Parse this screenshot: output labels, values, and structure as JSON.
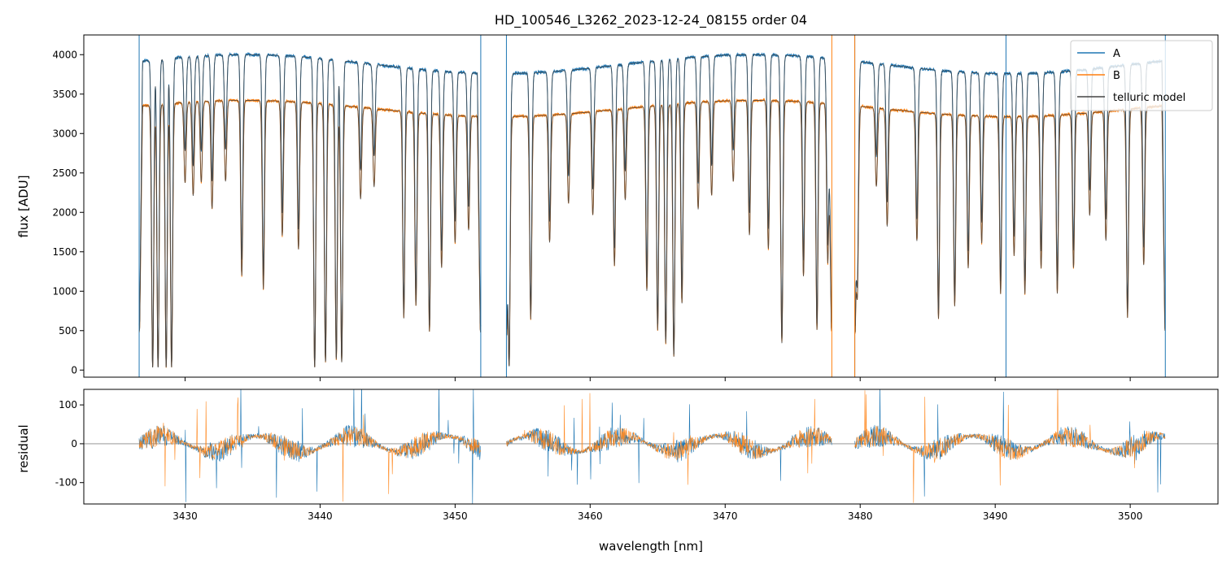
{
  "chart_data": [
    {
      "panel": "spectrum",
      "type": "line",
      "title": "HD_100546_L3262_2023-12-24_08155  order 04",
      "xlabel": "",
      "ylabel": "flux [ADU]",
      "xlim": [
        3422.5,
        3506.5
      ],
      "ylim": [
        -90,
        4250
      ],
      "yticks": [
        0,
        500,
        1000,
        1500,
        2000,
        2500,
        3000,
        3500,
        4000
      ],
      "xticks": [
        3430,
        3440,
        3450,
        3460,
        3470,
        3480,
        3490,
        3500
      ],
      "grid": false,
      "legend": "top-right",
      "series": [
        {
          "name": "A",
          "color": "#1f77b4",
          "continuum": 4000,
          "segments": [
            [
              3426.6,
              3451.9
            ],
            [
              3453.8,
              3477.9
            ],
            [
              3479.6,
              3502.6
            ]
          ]
        },
        {
          "name": "B",
          "color": "#ff7f0e",
          "continuum": 3420,
          "segments": [
            [
              3426.6,
              3451.9
            ],
            [
              3453.8,
              3477.9
            ],
            [
              3479.6,
              3502.6
            ]
          ]
        },
        {
          "name": "telluric model",
          "color": "#444444"
        }
      ],
      "absorption_lines": [
        {
          "x": 3427.6,
          "depth": 0.99
        },
        {
          "x": 3428.0,
          "depth": 0.99
        },
        {
          "x": 3428.6,
          "depth": 0.99
        },
        {
          "x": 3429.0,
          "depth": 0.99
        },
        {
          "x": 3430.0,
          "depth": 0.3
        },
        {
          "x": 3430.6,
          "depth": 0.35
        },
        {
          "x": 3431.2,
          "depth": 0.3
        },
        {
          "x": 3432.0,
          "depth": 0.4
        },
        {
          "x": 3433.0,
          "depth": 0.3
        },
        {
          "x": 3434.2,
          "depth": 0.65
        },
        {
          "x": 3435.8,
          "depth": 0.7
        },
        {
          "x": 3437.2,
          "depth": 0.5
        },
        {
          "x": 3438.4,
          "depth": 0.55
        },
        {
          "x": 3439.6,
          "depth": 0.99
        },
        {
          "x": 3440.4,
          "depth": 0.97
        },
        {
          "x": 3441.2,
          "depth": 0.96
        },
        {
          "x": 3441.6,
          "depth": 0.97
        },
        {
          "x": 3443.0,
          "depth": 0.35
        },
        {
          "x": 3444.0,
          "depth": 0.3
        },
        {
          "x": 3446.2,
          "depth": 0.8
        },
        {
          "x": 3447.1,
          "depth": 0.75
        },
        {
          "x": 3448.1,
          "depth": 0.85
        },
        {
          "x": 3449.0,
          "depth": 0.6
        },
        {
          "x": 3450.0,
          "depth": 0.5
        },
        {
          "x": 3451.0,
          "depth": 0.45
        },
        {
          "x": 3454.0,
          "depth": 0.98
        },
        {
          "x": 3455.6,
          "depth": 0.8
        },
        {
          "x": 3457.0,
          "depth": 0.5
        },
        {
          "x": 3458.4,
          "depth": 0.35
        },
        {
          "x": 3460.2,
          "depth": 0.4
        },
        {
          "x": 3461.8,
          "depth": 0.6
        },
        {
          "x": 3462.6,
          "depth": 0.35
        },
        {
          "x": 3464.2,
          "depth": 0.7
        },
        {
          "x": 3465.0,
          "depth": 0.85
        },
        {
          "x": 3465.6,
          "depth": 0.9
        },
        {
          "x": 3466.2,
          "depth": 0.95
        },
        {
          "x": 3466.8,
          "depth": 0.75
        },
        {
          "x": 3468.0,
          "depth": 0.4
        },
        {
          "x": 3469.0,
          "depth": 0.35
        },
        {
          "x": 3470.6,
          "depth": 0.3
        },
        {
          "x": 3471.8,
          "depth": 0.5
        },
        {
          "x": 3473.2,
          "depth": 0.55
        },
        {
          "x": 3474.2,
          "depth": 0.9
        },
        {
          "x": 3475.8,
          "depth": 0.65
        },
        {
          "x": 3476.8,
          "depth": 0.85
        },
        {
          "x": 3477.6,
          "depth": 0.6
        },
        {
          "x": 3479.8,
          "depth": 0.65
        },
        {
          "x": 3481.2,
          "depth": 0.3
        },
        {
          "x": 3482.0,
          "depth": 0.45
        },
        {
          "x": 3484.2,
          "depth": 0.5
        },
        {
          "x": 3485.8,
          "depth": 0.8
        },
        {
          "x": 3487.0,
          "depth": 0.75
        },
        {
          "x": 3488.0,
          "depth": 0.6
        },
        {
          "x": 3489.0,
          "depth": 0.5
        },
        {
          "x": 3490.4,
          "depth": 0.7
        },
        {
          "x": 3491.4,
          "depth": 0.55
        },
        {
          "x": 3492.2,
          "depth": 0.7
        },
        {
          "x": 3493.4,
          "depth": 0.6
        },
        {
          "x": 3494.6,
          "depth": 0.7
        },
        {
          "x": 3495.8,
          "depth": 0.6
        },
        {
          "x": 3497.0,
          "depth": 0.4
        },
        {
          "x": 3498.2,
          "depth": 0.5
        },
        {
          "x": 3499.8,
          "depth": 0.8
        },
        {
          "x": 3501.0,
          "depth": 0.6
        }
      ]
    },
    {
      "panel": "residual",
      "type": "line",
      "title": "",
      "xlabel": "wavelength [nm]",
      "ylabel": "residual",
      "xlim": [
        3422.5,
        3506.5
      ],
      "ylim": [
        -155,
        140
      ],
      "yticks": [
        -100,
        0,
        100
      ],
      "xticks": [
        3430,
        3440,
        3450,
        3460,
        3470,
        3480,
        3490,
        3500
      ],
      "zero_line": 0,
      "series": [
        {
          "name": "A",
          "color": "#1f77b4",
          "scatter_amplitude": 30
        },
        {
          "name": "B",
          "color": "#ff7f0e",
          "scatter_amplitude": 28
        }
      ]
    }
  ]
}
